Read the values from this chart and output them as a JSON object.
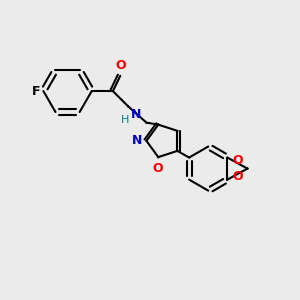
{
  "background_color": "#ebebeb",
  "bond_color": "#000000",
  "atom_colors": {
    "F": "#000000",
    "O": "#ff0000",
    "N": "#0000cc",
    "H": "#008080",
    "C": "#000000"
  },
  "figsize": [
    3.0,
    3.0
  ],
  "dpi": 100
}
